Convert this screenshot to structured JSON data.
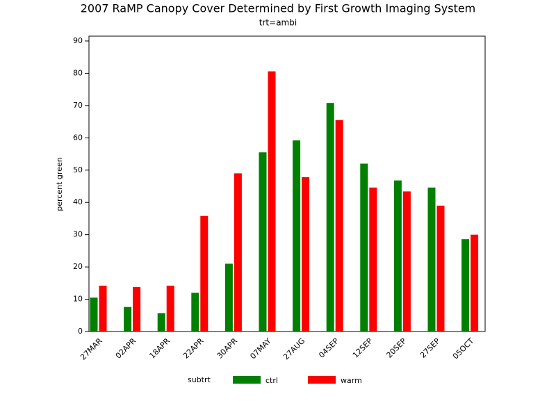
{
  "chart_data": {
    "type": "bar",
    "title": "2007 RaMP Canopy Cover Determined by First Growth Imaging System",
    "subtitle": "trt=ambi",
    "y_label": "percent green",
    "legend_title": "subtrt",
    "categories": [
      "27MAR",
      "02APR",
      "18APR",
      "22APR",
      "30APR",
      "07MAY",
      "27AUG",
      "04SEP",
      "12SEP",
      "20SEP",
      "27SEP",
      "05OCT"
    ],
    "series": [
      {
        "name": "ctrl",
        "color": "#008000",
        "values": [
          10.5,
          7.6,
          5.7,
          12,
          21,
          55.5,
          59.2,
          70.8,
          52,
          46.8,
          44.6,
          28.6
        ]
      },
      {
        "name": "warm",
        "color": "#ff0000",
        "values": [
          14.2,
          13.8,
          14.2,
          35.8,
          49,
          80.6,
          47.8,
          65.5,
          44.6,
          43.4,
          39,
          30
        ]
      }
    ],
    "ylim": [
      0,
      91.5
    ],
    "yticks": [
      0,
      10,
      20,
      30,
      40,
      50,
      60,
      70,
      80,
      90
    ],
    "grid": false
  }
}
